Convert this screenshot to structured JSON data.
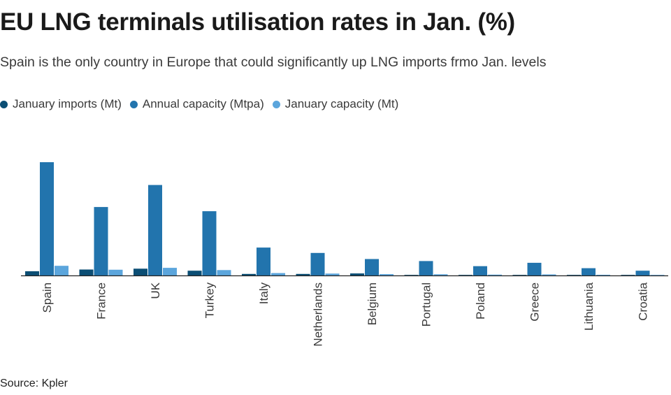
{
  "title": "EU LNG terminals utilisation rates in Jan. (%)",
  "subtitle": "Spain is the only country in Europe that could significantly up LNG imports frmo Jan. levels",
  "source": "Source: Kpler",
  "colors": {
    "january_imports": "#0b4e74",
    "annual_capacity": "#2274ad",
    "january_capacity": "#5ba5dc",
    "axis": "#222222",
    "text": "#3a3a3a"
  },
  "legend": [
    {
      "label": "January imports (Mt)",
      "color": "#0b4e74"
    },
    {
      "label": "Annual capacity (Mtpa)",
      "color": "#2274ad"
    },
    {
      "label": "January capacity (Mt)",
      "color": "#5ba5dc"
    }
  ],
  "chart_data": {
    "type": "bar",
    "title": "EU LNG terminals utilisation rates in Jan. (%)",
    "xlabel": "",
    "ylabel": "",
    "ylim": [
      0,
      70
    ],
    "grid": false,
    "legend_position": "top-left",
    "categories": [
      "Spain",
      "France",
      "UK",
      "Turkey",
      "Italy",
      "Netherlands",
      "Belgium",
      "Portugal",
      "Poland",
      "Greece",
      "Lithuania",
      "Croatia"
    ],
    "series": [
      {
        "name": "January imports (Mt)",
        "values": [
          2.5,
          3.5,
          4.0,
          2.8,
          0.9,
          0.9,
          1.2,
          0.3,
          0.2,
          0.2,
          0.3,
          0.2
        ]
      },
      {
        "name": "Annual capacity (Mtpa)",
        "values": [
          67.0,
          40.5,
          53.5,
          38.0,
          16.5,
          13.3,
          9.7,
          8.5,
          5.5,
          7.5,
          4.3,
          2.8
        ]
      },
      {
        "name": "January capacity (Mt)",
        "values": [
          5.7,
          3.4,
          4.5,
          3.2,
          1.4,
          1.1,
          0.8,
          0.7,
          0.5,
          0.6,
          0.4,
          0.2
        ]
      }
    ]
  }
}
